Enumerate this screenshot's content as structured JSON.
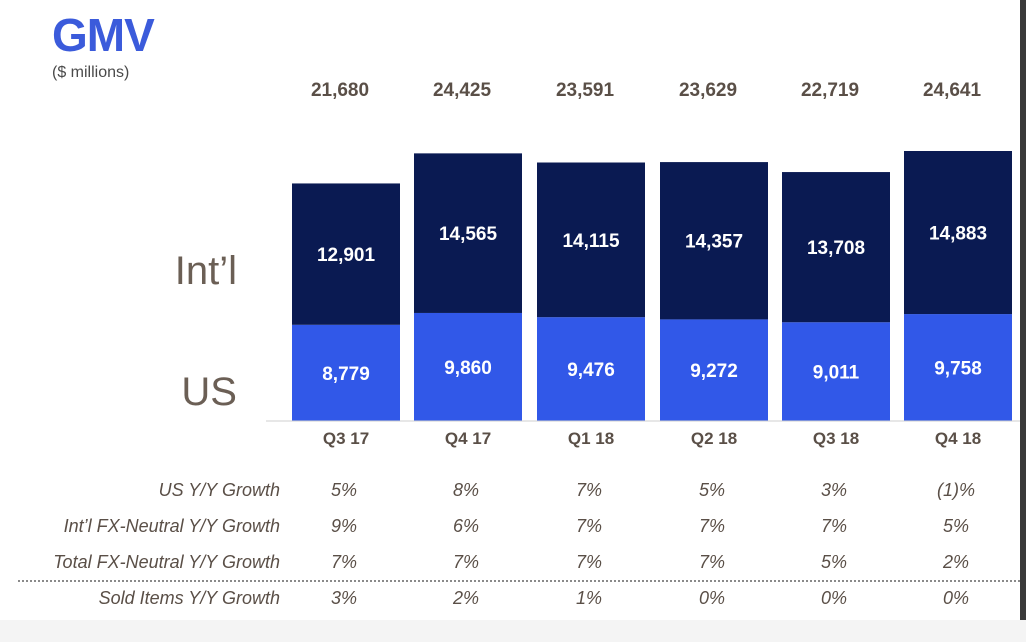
{
  "title": "GMV",
  "subtitle": "($ millions)",
  "chart_data": {
    "type": "bar",
    "stacked": true,
    "categories": [
      "Q3 17",
      "Q4 17",
      "Q1 18",
      "Q2 18",
      "Q3 18",
      "Q4 18"
    ],
    "totals_labels": [
      "21,680",
      "24,425",
      "23,591",
      "23,629",
      "22,719",
      "24,641"
    ],
    "totals": [
      21680,
      24425,
      23591,
      23629,
      22719,
      24641
    ],
    "series": [
      {
        "name": "US",
        "color": "#3158e8",
        "values": [
          8779,
          9860,
          9476,
          9272,
          9011,
          9758
        ],
        "labels": [
          "8,779",
          "9,860",
          "9,476",
          "9,272",
          "9,011",
          "9,758"
        ]
      },
      {
        "name": "Int’l",
        "color": "#0a1a52",
        "values": [
          12901,
          14565,
          14115,
          14357,
          13708,
          14883
        ],
        "labels": [
          "12,901",
          "14,565",
          "14,115",
          "14,357",
          "13,708",
          "14,883"
        ]
      }
    ],
    "ylim": [
      0,
      24641
    ],
    "grid": false,
    "legend": "left"
  },
  "metrics": [
    {
      "name": "US Y/Y Growth",
      "values": [
        "5%",
        "8%",
        "7%",
        "5%",
        "3%",
        "(1)%"
      ]
    },
    {
      "name": "Int’l FX-Neutral Y/Y Growth",
      "values": [
        "9%",
        "6%",
        "7%",
        "7%",
        "7%",
        "5%"
      ]
    },
    {
      "name": "Total FX-Neutral Y/Y Growth",
      "values": [
        "7%",
        "7%",
        "7%",
        "7%",
        "5%",
        "2%"
      ]
    },
    {
      "name": "Sold Items Y/Y Growth",
      "values": [
        "3%",
        "2%",
        "1%",
        "0%",
        "0%",
        "0%"
      ]
    }
  ]
}
